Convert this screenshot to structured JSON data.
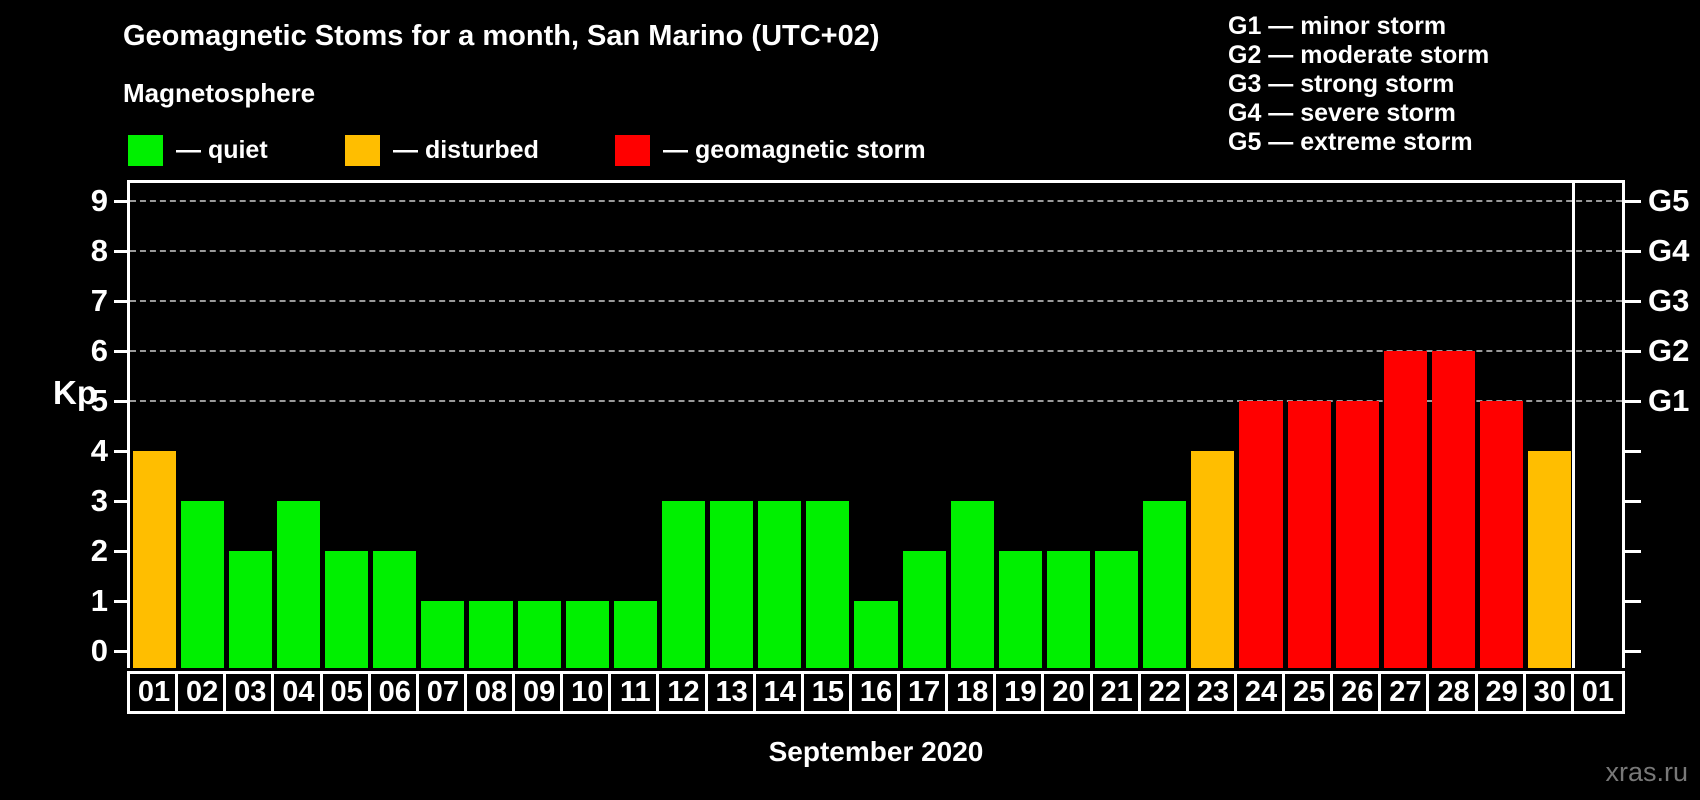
{
  "chart_data": {
    "type": "bar",
    "title": "Geomagnetic Stoms for a month, San Marino (UTC+02)",
    "subtitle": "Magnetosphere",
    "xlabel": "September 2020",
    "ylabel": "Kp",
    "categories": [
      "01",
      "02",
      "03",
      "04",
      "05",
      "06",
      "07",
      "08",
      "09",
      "10",
      "11",
      "12",
      "13",
      "14",
      "15",
      "16",
      "17",
      "18",
      "19",
      "20",
      "21",
      "22",
      "23",
      "24",
      "25",
      "26",
      "27",
      "28",
      "29",
      "30",
      "01"
    ],
    "values": [
      4,
      3,
      2,
      3,
      2,
      2,
      1,
      1,
      1,
      1,
      1,
      3,
      3,
      3,
      3,
      1,
      2,
      3,
      2,
      2,
      2,
      3,
      4,
      5,
      5,
      5,
      6,
      6,
      5,
      4,
      null
    ],
    "ylim": [
      0,
      9
    ],
    "yticks": [
      0,
      1,
      2,
      3,
      4,
      5,
      6,
      7,
      8,
      9
    ],
    "right_axis_labels": [
      {
        "value": 5,
        "label": "G1"
      },
      {
        "value": 6,
        "label": "G2"
      },
      {
        "value": 7,
        "label": "G3"
      },
      {
        "value": 8,
        "label": "G4"
      },
      {
        "value": 9,
        "label": "G5"
      }
    ],
    "gridlines_at": [
      5,
      6,
      7,
      8,
      9
    ],
    "grid_style": "dashed",
    "legend_position": "top-left",
    "legend": [
      {
        "key": "quiet",
        "label": "— quiet",
        "color": "#00F000"
      },
      {
        "key": "disturbed",
        "label": "— disturbed",
        "color": "#FFBE00"
      },
      {
        "key": "storm",
        "label": "— geomagnetic storm",
        "color": "#FF0000"
      }
    ],
    "g_scale_legend": [
      "G1 — minor storm",
      "G2 — moderate storm",
      "G3 — strong storm",
      "G4 — severe storm",
      "G5 — extreme storm"
    ],
    "color_rule": {
      "storm_min_kp": 5,
      "disturbed_min_kp": 4
    }
  },
  "watermark": "xras.ru"
}
